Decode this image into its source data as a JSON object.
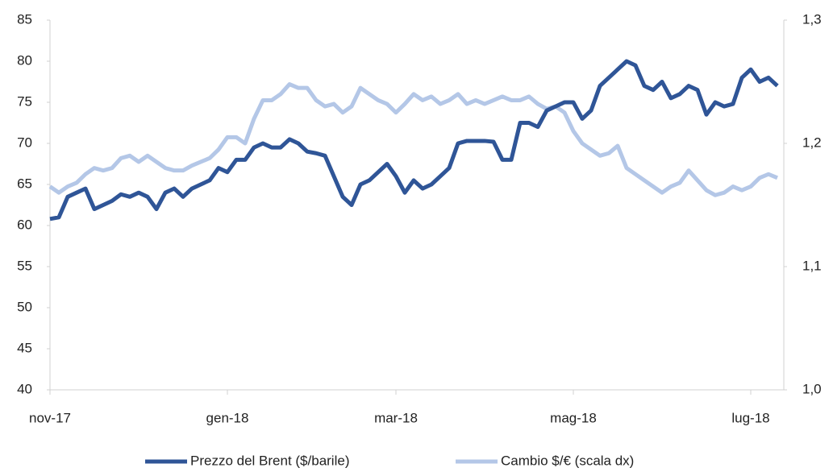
{
  "chart_data": {
    "type": "line",
    "categories": [
      "nov-17",
      null,
      null,
      null,
      null,
      null,
      null,
      null,
      null,
      null,
      null,
      null,
      null,
      null,
      null,
      null,
      null,
      null,
      null,
      null,
      "gen-18",
      null,
      null,
      null,
      null,
      null,
      null,
      null,
      null,
      null,
      null,
      null,
      null,
      null,
      null,
      null,
      null,
      null,
      null,
      "mar-18",
      null,
      null,
      null,
      null,
      null,
      null,
      null,
      null,
      null,
      null,
      null,
      null,
      null,
      null,
      null,
      null,
      null,
      null,
      null,
      "mag-18",
      null,
      null,
      null,
      null,
      null,
      null,
      null,
      null,
      null,
      null,
      null,
      null,
      null,
      null,
      null,
      null,
      null,
      null,
      null,
      "lug-18",
      null,
      null,
      null
    ],
    "series": [
      {
        "name": "Prezzo del Brent ($/barile)",
        "color": "#2f5597",
        "values": [
          60.8,
          61,
          63.5,
          64,
          64.5,
          62,
          62.5,
          63,
          63.8,
          63.5,
          64,
          63.5,
          62,
          64,
          64.5,
          63.5,
          64.5,
          65,
          65.5,
          67,
          66.5,
          68,
          68,
          69.5,
          70,
          69.5,
          69.5,
          70.5,
          70,
          69,
          68.8,
          68.5,
          66,
          63.5,
          62.5,
          65,
          65.5,
          66.5,
          67.5,
          66,
          64,
          65.5,
          64.5,
          65,
          66,
          67,
          70,
          70.3,
          70.3,
          70.3,
          70.2,
          68,
          68,
          72.5,
          72.5,
          72,
          74,
          74.5,
          75,
          75,
          73,
          74,
          77,
          78,
          79,
          80,
          79.5,
          77,
          76.5,
          77.5,
          75.5,
          76,
          77,
          76.5,
          73.5,
          75,
          74.5,
          74.8,
          78,
          79,
          77.5,
          78,
          77
        ]
      },
      {
        "name": "Cambio $/€ (scala dx)",
        "color": "#b4c7e7",
        "axis": "y2",
        "values": [
          1.165,
          1.16,
          1.165,
          1.168,
          1.175,
          1.18,
          1.178,
          1.18,
          1.188,
          1.19,
          1.185,
          1.19,
          1.185,
          1.18,
          1.178,
          1.178,
          1.182,
          1.185,
          1.188,
          1.195,
          1.205,
          1.205,
          1.2,
          1.22,
          1.235,
          1.235,
          1.24,
          1.248,
          1.245,
          1.245,
          1.235,
          1.23,
          1.232,
          1.225,
          1.23,
          1.245,
          1.24,
          1.235,
          1.232,
          1.225,
          1.232,
          1.24,
          1.235,
          1.238,
          1.232,
          1.235,
          1.24,
          1.232,
          1.235,
          1.232,
          1.235,
          1.238,
          1.235,
          1.235,
          1.238,
          1.232,
          1.228,
          1.23,
          1.225,
          1.21,
          1.2,
          1.195,
          1.19,
          1.192,
          1.198,
          1.18,
          1.175,
          1.17,
          1.165,
          1.16,
          1.165,
          1.168,
          1.178,
          1.17,
          1.162,
          1.158,
          1.16,
          1.165,
          1.162,
          1.165,
          1.172,
          1.175,
          1.172
        ]
      }
    ],
    "ylim": [
      40,
      85
    ],
    "yticks": [
      40,
      45,
      50,
      55,
      60,
      65,
      70,
      75,
      80,
      85
    ],
    "y2lim": [
      1.0,
      1.3
    ],
    "y2ticks": [
      {
        "value": 1.0,
        "label": "1,0"
      },
      {
        "value": 1.1,
        "label": "1,1"
      },
      {
        "value": 1.2,
        "label": "1,2"
      },
      {
        "value": 1.3,
        "label": "1,3"
      }
    ],
    "legend": "bottom"
  }
}
